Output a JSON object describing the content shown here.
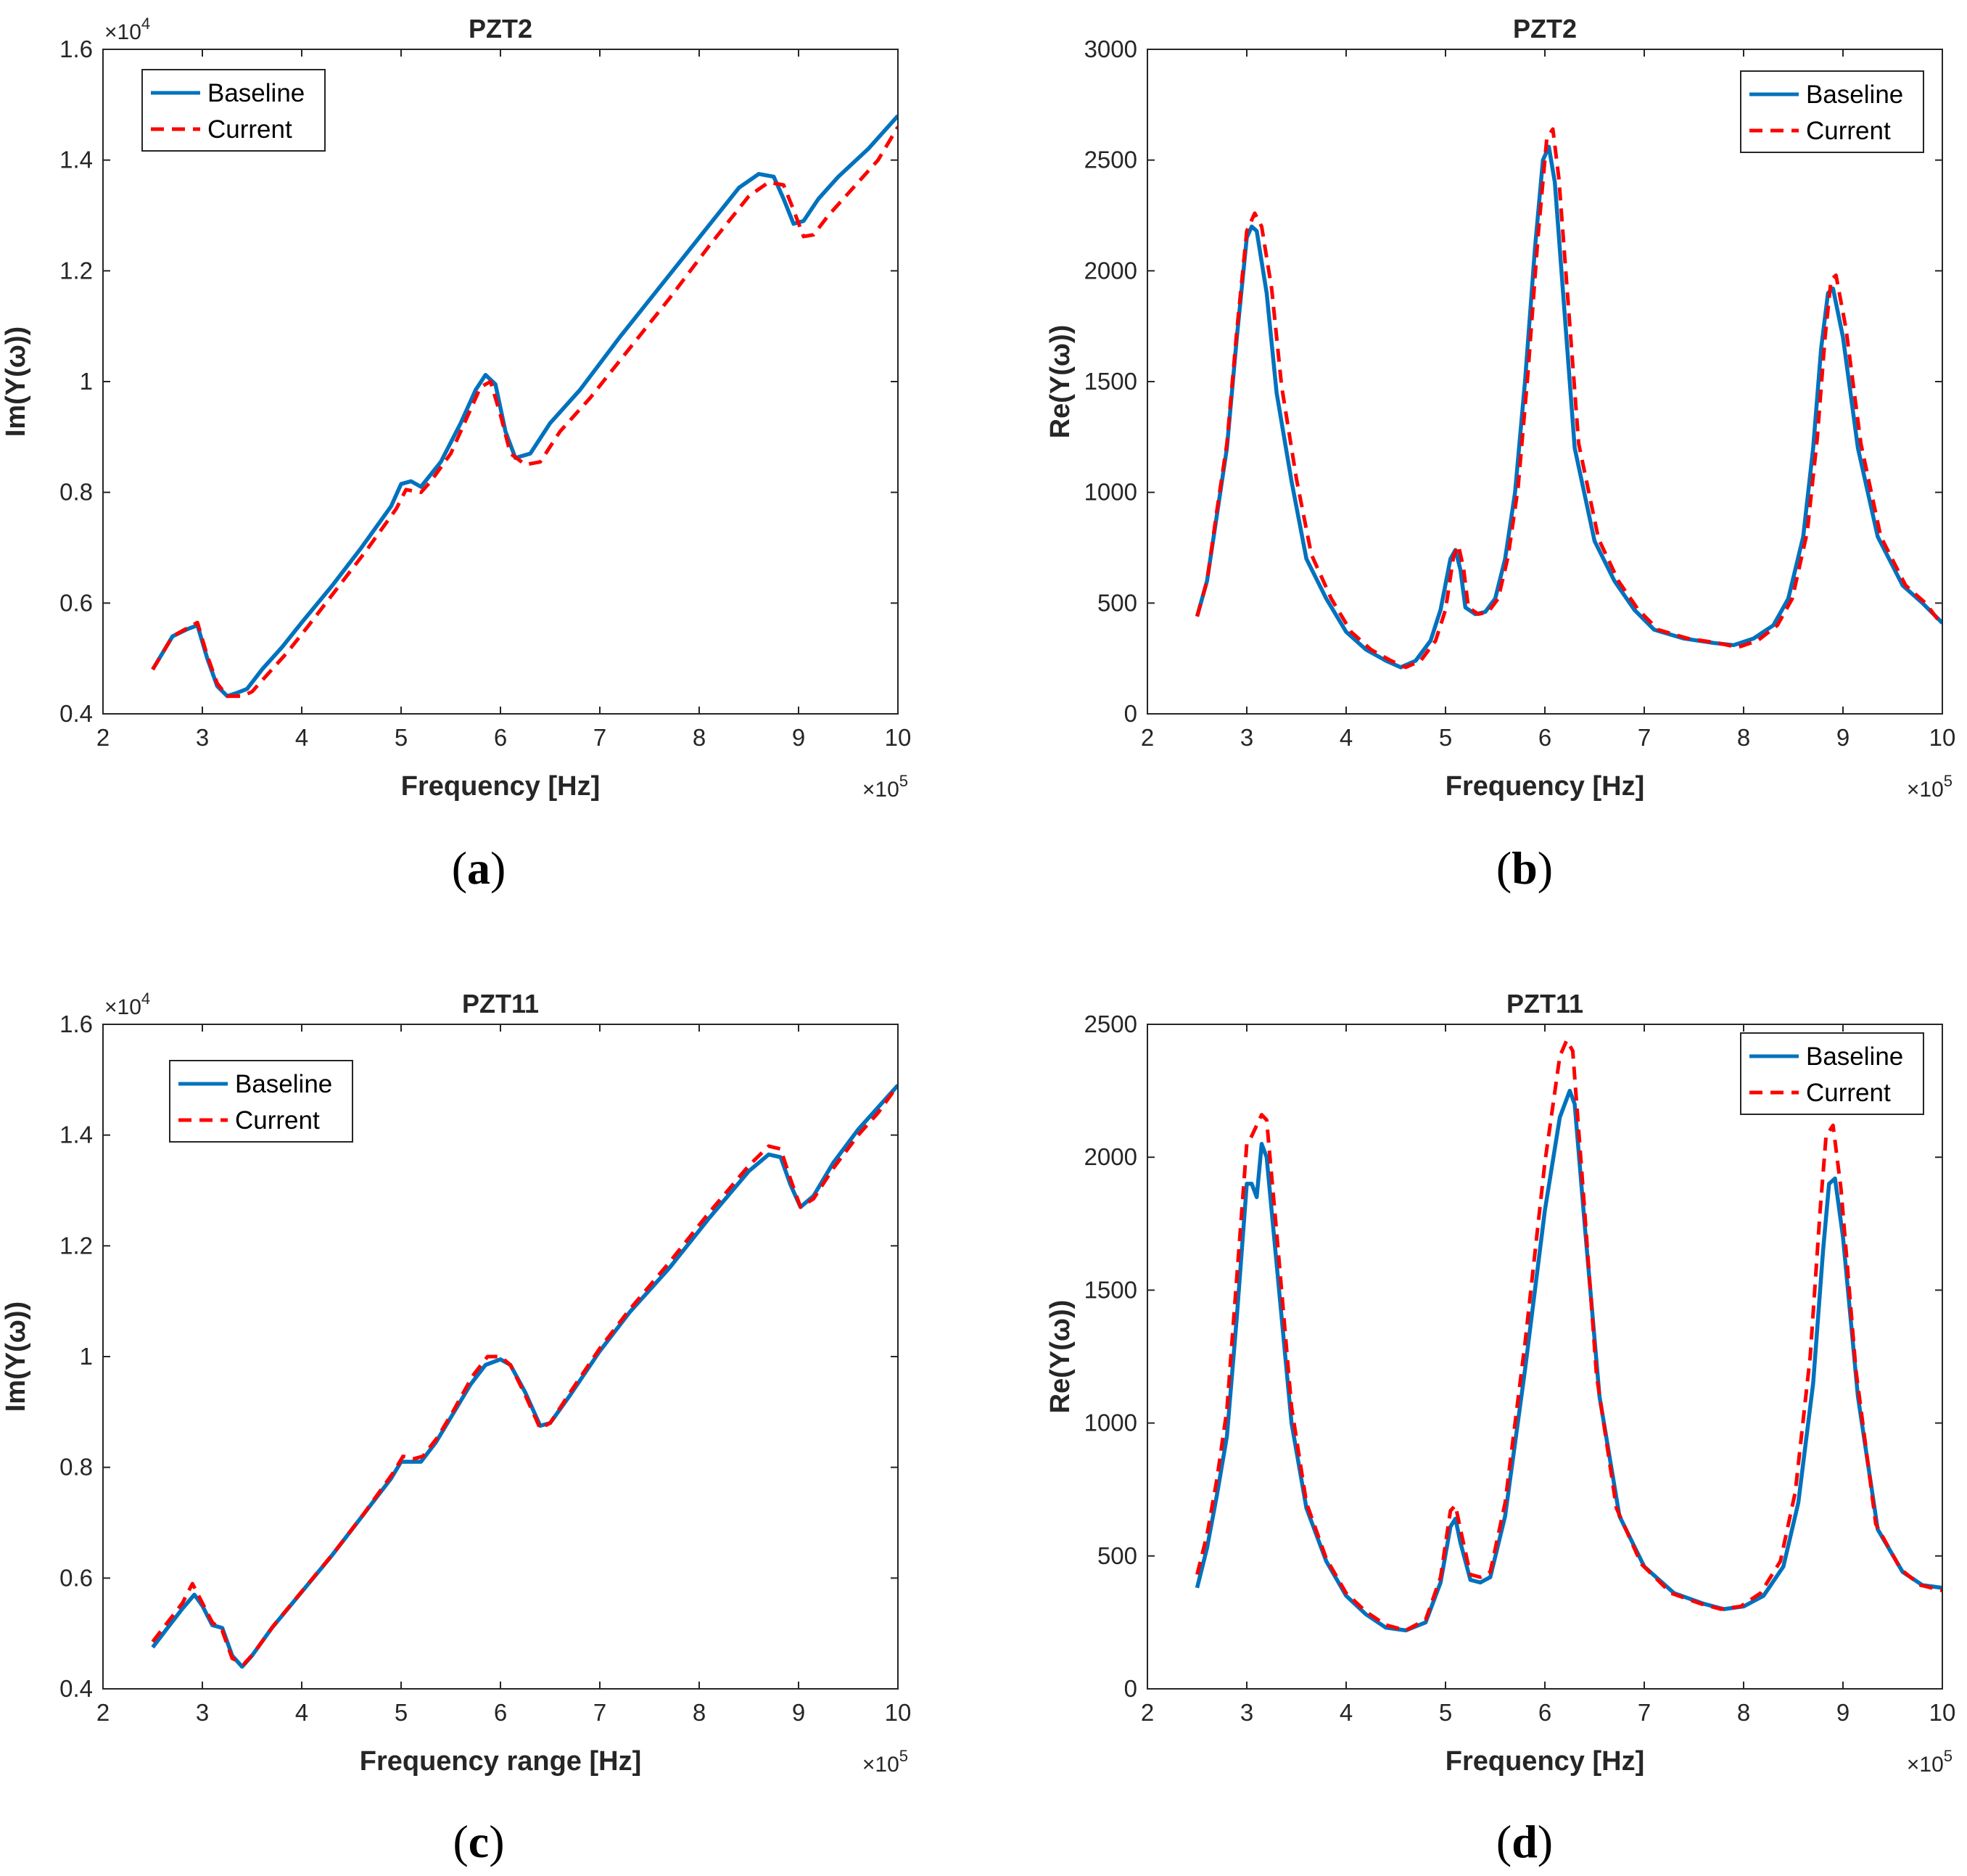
{
  "colors": {
    "baseline": "#0072BD",
    "current": "#FF0000",
    "axis": "#262626"
  },
  "chart_data": [
    {
      "type": "line",
      "caption": "a",
      "title": "PZT2",
      "xlabel": "Frequency [Hz]",
      "ylabel": "Im(Y(ω))",
      "xlim": [
        2,
        10
      ],
      "ylim": [
        0.4,
        1.6
      ],
      "x_ticks": [
        "2",
        "3",
        "4",
        "5",
        "6",
        "7",
        "8",
        "9",
        "10"
      ],
      "y_ticks": [
        "0.4",
        "0.6",
        "0.8",
        "1",
        "1.2",
        "1.4",
        "1.6"
      ],
      "x_multiplier": {
        "base": "×10",
        "exp": "5"
      },
      "y_multiplier": {
        "base": "×10",
        "exp": "4"
      },
      "legend": {
        "position": "top-left",
        "entries": [
          "Baseline",
          "Current"
        ]
      },
      "series": [
        {
          "name": "Baseline",
          "style": "solid",
          "x": [
            2.5,
            2.6,
            2.7,
            2.85,
            2.95,
            3.05,
            3.15,
            3.25,
            3.35,
            3.45,
            3.6,
            3.8,
            4.0,
            4.3,
            4.6,
            4.9,
            5.0,
            5.1,
            5.2,
            5.4,
            5.6,
            5.75,
            5.85,
            5.95,
            6.05,
            6.15,
            6.3,
            6.5,
            6.8,
            7.2,
            7.6,
            8.0,
            8.4,
            8.6,
            8.75,
            8.85,
            8.95,
            9.05,
            9.2,
            9.4,
            9.7,
            10.0
          ],
          "y": [
            0.48,
            0.51,
            0.54,
            0.553,
            0.56,
            0.5,
            0.45,
            0.432,
            0.438,
            0.445,
            0.48,
            0.52,
            0.565,
            0.63,
            0.7,
            0.775,
            0.815,
            0.82,
            0.81,
            0.855,
            0.925,
            0.985,
            1.012,
            0.995,
            0.91,
            0.862,
            0.87,
            0.925,
            0.985,
            1.08,
            1.17,
            1.26,
            1.35,
            1.375,
            1.37,
            1.33,
            1.285,
            1.29,
            1.33,
            1.37,
            1.42,
            1.48
          ]
        },
        {
          "name": "Current",
          "style": "dashed",
          "x": [
            2.5,
            2.6,
            2.7,
            2.85,
            2.95,
            3.05,
            3.15,
            3.25,
            3.4,
            3.5,
            3.65,
            3.85,
            4.05,
            4.35,
            4.65,
            4.95,
            5.05,
            5.2,
            5.3,
            5.5,
            5.65,
            5.8,
            5.9,
            6.0,
            6.1,
            6.25,
            6.4,
            6.6,
            6.9,
            7.3,
            7.7,
            8.1,
            8.5,
            8.7,
            8.85,
            8.95,
            9.05,
            9.15,
            9.3,
            9.5,
            9.8,
            10.0
          ],
          "y": [
            0.48,
            0.51,
            0.54,
            0.555,
            0.565,
            0.505,
            0.455,
            0.432,
            0.432,
            0.44,
            0.47,
            0.51,
            0.555,
            0.625,
            0.695,
            0.77,
            0.805,
            0.8,
            0.82,
            0.87,
            0.93,
            0.99,
            1.0,
            0.94,
            0.87,
            0.85,
            0.855,
            0.91,
            0.97,
            1.06,
            1.15,
            1.245,
            1.335,
            1.36,
            1.355,
            1.31,
            1.262,
            1.265,
            1.3,
            1.34,
            1.4,
            1.46
          ]
        }
      ]
    },
    {
      "type": "line",
      "caption": "b",
      "title": "PZT2",
      "xlabel": "Frequency [Hz]",
      "ylabel": "Re(Y(ω))",
      "xlim": [
        2,
        10
      ],
      "ylim": [
        0,
        3000
      ],
      "x_ticks": [
        "2",
        "3",
        "4",
        "5",
        "6",
        "7",
        "8",
        "9",
        "10"
      ],
      "y_ticks": [
        "0",
        "500",
        "1000",
        "1500",
        "2000",
        "2500",
        "3000"
      ],
      "x_multiplier": {
        "base": "×10",
        "exp": "5"
      },
      "legend": {
        "position": "top-right",
        "entries": [
          "Baseline",
          "Current"
        ]
      },
      "series": [
        {
          "name": "Baseline",
          "style": "solid",
          "x": [
            2.5,
            2.6,
            2.7,
            2.8,
            2.9,
            3.0,
            3.05,
            3.1,
            3.2,
            3.3,
            3.45,
            3.6,
            3.8,
            4.0,
            4.2,
            4.4,
            4.55,
            4.7,
            4.85,
            4.95,
            5.05,
            5.1,
            5.15,
            5.2,
            5.3,
            5.4,
            5.5,
            5.6,
            5.7,
            5.8,
            5.9,
            5.98,
            6.04,
            6.1,
            6.2,
            6.3,
            6.5,
            6.7,
            6.9,
            7.1,
            7.4,
            7.7,
            7.9,
            8.1,
            8.3,
            8.45,
            8.6,
            8.7,
            8.78,
            8.85,
            8.9,
            9.0,
            9.15,
            9.35,
            9.6,
            9.8,
            10.0
          ],
          "y": [
            440,
            600,
            900,
            1200,
            1700,
            2150,
            2200,
            2180,
            1900,
            1450,
            1050,
            700,
            520,
            370,
            290,
            240,
            210,
            240,
            330,
            470,
            700,
            740,
            650,
            480,
            450,
            460,
            520,
            700,
            1000,
            1500,
            2100,
            2500,
            2560,
            2400,
            1800,
            1200,
            780,
            600,
            470,
            380,
            340,
            320,
            310,
            340,
            400,
            520,
            800,
            1200,
            1650,
            1900,
            1920,
            1700,
            1200,
            800,
            580,
            500,
            410
          ]
        },
        {
          "name": "Current",
          "style": "dashed",
          "x": [
            2.5,
            2.6,
            2.7,
            2.8,
            2.9,
            3.0,
            3.08,
            3.15,
            3.25,
            3.35,
            3.5,
            3.65,
            3.85,
            4.05,
            4.25,
            4.45,
            4.6,
            4.75,
            4.9,
            5.0,
            5.08,
            5.13,
            5.18,
            5.23,
            5.33,
            5.43,
            5.53,
            5.63,
            5.73,
            5.83,
            5.93,
            6.02,
            6.08,
            6.14,
            6.24,
            6.34,
            6.54,
            6.74,
            6.94,
            7.14,
            7.44,
            7.74,
            7.94,
            8.14,
            8.34,
            8.49,
            8.64,
            8.74,
            8.82,
            8.88,
            8.93,
            9.03,
            9.18,
            9.38,
            9.63,
            9.83,
            10.0
          ],
          "y": [
            440,
            600,
            920,
            1220,
            1730,
            2180,
            2260,
            2200,
            1920,
            1480,
            1060,
            720,
            520,
            370,
            290,
            240,
            210,
            240,
            330,
            470,
            710,
            760,
            660,
            480,
            450,
            460,
            520,
            710,
            1020,
            1540,
            2150,
            2600,
            2640,
            2420,
            1820,
            1220,
            790,
            600,
            470,
            380,
            340,
            320,
            300,
            330,
            400,
            520,
            820,
            1240,
            1700,
            1960,
            1980,
            1740,
            1220,
            800,
            580,
            500,
            400
          ]
        }
      ]
    },
    {
      "type": "line",
      "caption": "c",
      "title": "PZT11",
      "xlabel": "Frequency range [Hz]",
      "ylabel": "Im(Y(ω))",
      "xlim": [
        2,
        10
      ],
      "ylim": [
        0.4,
        1.6
      ],
      "x_ticks": [
        "2",
        "3",
        "4",
        "5",
        "6",
        "7",
        "8",
        "9",
        "10"
      ],
      "y_ticks": [
        "0.4",
        "0.6",
        "0.8",
        "1",
        "1.2",
        "1.4",
        "1.6"
      ],
      "x_multiplier": {
        "base": "×10",
        "exp": "5"
      },
      "y_multiplier": {
        "base": "×10",
        "exp": "4"
      },
      "legend": {
        "position": "top-left",
        "entries": [
          "Baseline",
          "Current"
        ]
      },
      "series": [
        {
          "name": "Baseline",
          "style": "solid",
          "x": [
            2.5,
            2.65,
            2.8,
            2.92,
            3.0,
            3.1,
            3.2,
            3.3,
            3.4,
            3.5,
            3.7,
            4.0,
            4.3,
            4.6,
            4.9,
            5.0,
            5.1,
            5.2,
            5.35,
            5.5,
            5.7,
            5.85,
            6.0,
            6.1,
            6.25,
            6.4,
            6.5,
            6.7,
            7.0,
            7.3,
            7.7,
            8.1,
            8.5,
            8.7,
            8.82,
            8.92,
            9.02,
            9.15,
            9.35,
            9.6,
            9.8,
            10.0
          ],
          "y": [
            0.475,
            0.51,
            0.545,
            0.57,
            0.55,
            0.515,
            0.51,
            0.46,
            0.44,
            0.46,
            0.51,
            0.575,
            0.64,
            0.71,
            0.78,
            0.81,
            0.81,
            0.81,
            0.845,
            0.89,
            0.95,
            0.985,
            0.995,
            0.985,
            0.935,
            0.875,
            0.88,
            0.93,
            1.01,
            1.08,
            1.16,
            1.25,
            1.335,
            1.365,
            1.36,
            1.31,
            1.27,
            1.29,
            1.35,
            1.41,
            1.45,
            1.49
          ]
        },
        {
          "name": "Current",
          "style": "dashed",
          "x": [
            2.5,
            2.65,
            2.8,
            2.9,
            3.0,
            3.1,
            3.2,
            3.3,
            3.42,
            3.52,
            3.72,
            4.02,
            4.32,
            4.62,
            4.92,
            5.02,
            5.12,
            5.22,
            5.37,
            5.52,
            5.72,
            5.87,
            6.0,
            6.1,
            6.25,
            6.4,
            6.5,
            6.7,
            7.0,
            7.3,
            7.7,
            8.1,
            8.5,
            8.7,
            8.82,
            8.92,
            9.02,
            9.15,
            9.35,
            9.6,
            9.8,
            10.0
          ],
          "y": [
            0.485,
            0.52,
            0.555,
            0.59,
            0.555,
            0.52,
            0.505,
            0.455,
            0.445,
            0.465,
            0.515,
            0.58,
            0.645,
            0.715,
            0.79,
            0.82,
            0.815,
            0.82,
            0.855,
            0.9,
            0.965,
            1.0,
            1.0,
            0.985,
            0.93,
            0.87,
            0.88,
            0.935,
            1.015,
            1.085,
            1.17,
            1.26,
            1.345,
            1.38,
            1.375,
            1.32,
            1.27,
            1.285,
            1.34,
            1.4,
            1.44,
            1.49
          ]
        }
      ]
    },
    {
      "type": "line",
      "caption": "d",
      "title": "PZT11",
      "xlabel": "Frequency [Hz]",
      "ylabel": "Re(Y(ω))",
      "xlim": [
        2,
        10
      ],
      "ylim": [
        0,
        2500
      ],
      "x_ticks": [
        "2",
        "3",
        "4",
        "5",
        "6",
        "7",
        "8",
        "9",
        "10"
      ],
      "y_ticks": [
        "0",
        "500",
        "1000",
        "1500",
        "2000",
        "2500"
      ],
      "x_multiplier": {
        "base": "×10",
        "exp": "5"
      },
      "legend": {
        "position": "top-right",
        "entries": [
          "Baseline",
          "Current"
        ]
      },
      "series": [
        {
          "name": "Baseline",
          "style": "solid",
          "x": [
            2.5,
            2.6,
            2.7,
            2.8,
            2.9,
            3.0,
            3.05,
            3.1,
            3.15,
            3.2,
            3.3,
            3.45,
            3.6,
            3.8,
            4.0,
            4.2,
            4.4,
            4.6,
            4.8,
            4.95,
            5.05,
            5.1,
            5.15,
            5.25,
            5.35,
            5.45,
            5.6,
            5.8,
            6.0,
            6.15,
            6.25,
            6.3,
            6.4,
            6.55,
            6.75,
            7.0,
            7.3,
            7.6,
            7.8,
            8.0,
            8.2,
            8.4,
            8.55,
            8.7,
            8.8,
            8.86,
            8.92,
            9.0,
            9.15,
            9.35,
            9.6,
            9.8,
            10.0
          ],
          "y": [
            380,
            530,
            730,
            950,
            1400,
            1900,
            1900,
            1850,
            2050,
            2000,
            1600,
            1000,
            680,
            480,
            350,
            280,
            230,
            220,
            250,
            400,
            610,
            640,
            550,
            410,
            400,
            420,
            650,
            1200,
            1800,
            2150,
            2250,
            2200,
            1750,
            1100,
            650,
            460,
            360,
            320,
            300,
            310,
            350,
            460,
            700,
            1150,
            1650,
            1900,
            1920,
            1700,
            1100,
            600,
            440,
            390,
            380
          ]
        },
        {
          "name": "Current",
          "style": "dashed",
          "x": [
            2.5,
            2.6,
            2.7,
            2.8,
            2.9,
            3.0,
            3.05,
            3.1,
            3.15,
            3.2,
            3.3,
            3.45,
            3.6,
            3.8,
            4.0,
            4.2,
            4.4,
            4.6,
            4.8,
            4.95,
            5.05,
            5.1,
            5.15,
            5.25,
            5.35,
            5.45,
            5.6,
            5.8,
            6.0,
            6.15,
            6.22,
            6.28,
            6.38,
            6.52,
            6.72,
            6.97,
            7.27,
            7.57,
            7.77,
            7.97,
            8.17,
            8.37,
            8.52,
            8.67,
            8.77,
            8.83,
            8.9,
            8.98,
            9.13,
            9.33,
            9.58,
            9.78,
            10.0
          ],
          "y": [
            430,
            580,
            790,
            1050,
            1550,
            2050,
            2080,
            2120,
            2160,
            2140,
            1720,
            1060,
            700,
            490,
            360,
            290,
            240,
            220,
            260,
            420,
            670,
            690,
            600,
            430,
            420,
            440,
            700,
            1300,
            1980,
            2380,
            2440,
            2400,
            1900,
            1180,
            680,
            470,
            360,
            320,
            300,
            310,
            360,
            480,
            740,
            1250,
            1800,
            2080,
            2120,
            1880,
            1200,
            620,
            450,
            390,
            370
          ]
        }
      ]
    }
  ]
}
